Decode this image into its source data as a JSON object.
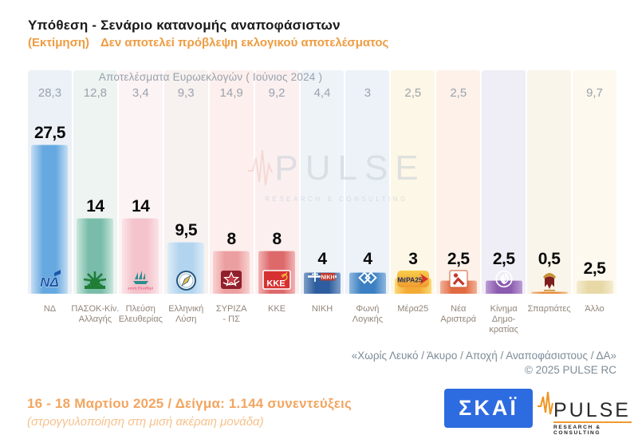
{
  "title": "Υπόθεση - Σενάριο κατανομής αναποφάσιστων",
  "subtitle_left": "(Εκτίμηση)",
  "subtitle_right": "Δεν αποτελεί πρόβλεψη εκλογικού αποτελέσματος",
  "euro_header": "Αποτελέσματα Ευρωεκλογών  ( Ιούνιος 2024 )",
  "watermark": {
    "name": "PULSE",
    "sub": "RESEARCH & CONSULTING",
    "icon": "pulse-waveform-icon"
  },
  "note_line1": "«Χωρίς Λευκό / Άκυρο / Αποχή / Αναποφάσιστους / ΔΑ»",
  "note_line2": "© 2025 PULSE RC",
  "footer": {
    "line1": "16 - 18 Μαρτίου 2025  /  Δείγμα:  1.144 συνεντεύξεις",
    "line2": "(στρογγυλοποίηση στη μισή ακέραιη μονάδα)"
  },
  "logos": {
    "skai_label": "ΣΚΑΪ",
    "pulse_label": "PULSE",
    "pulse_sub": "RESEARCH & CONSULTING"
  },
  "colors": {
    "accent_orange": "#ee9c41",
    "footer_orange": "#f2a661",
    "skai_blue": "#2d6be0",
    "note_gray": "#7d8c97",
    "euro_gray": "#9aa2ac",
    "label_gray": "#91857a"
  },
  "parties": [
    {
      "label_lines": [
        "ΝΔ"
      ],
      "euro": "28,3",
      "value_label": "27,5",
      "value": 27.5,
      "bar": "#66a9e0",
      "bar_light": "#c6def3",
      "stripe": "#ecf1f7",
      "logo": "nd-logo"
    },
    {
      "label_lines": [
        "ΠΑΣΟΚ-Κίν.",
        "Αλλαγής"
      ],
      "euro": "12,8",
      "value_label": "14",
      "value": 14,
      "bar": "#79bcaa",
      "bar_light": "#c9e6db",
      "stripe": "#eef4f1",
      "logo": "pasok-sun-logo"
    },
    {
      "label_lines": [
        "Πλεύση",
        "Ελευθερίας"
      ],
      "euro": "3,4",
      "value_label": "14",
      "value": 14,
      "bar": "#f4c3cb",
      "bar_light": "#fbe3e8",
      "stripe": "#fcf3f4",
      "logo": "plefsi-sailboat-logo"
    },
    {
      "label_lines": [
        "Ελληνική",
        "Λύση"
      ],
      "euro": "9,3",
      "value_label": "9,5",
      "value": 9.5,
      "bar": "#b3d4ee",
      "bar_light": "#ddecf8",
      "stripe": "#f7f1ef",
      "logo": "elliniki-lysi-compass-logo"
    },
    {
      "label_lines": [
        "ΣΥΡΙΖΑ",
        "- ΠΣ"
      ],
      "euro": "14,9",
      "value_label": "8",
      "value": 8,
      "bar": "#ec9fa0",
      "bar_light": "#f8d2d2",
      "stripe": "#fdefed",
      "logo": "syriza-star-logo"
    },
    {
      "label_lines": [
        "ΚΚΕ"
      ],
      "euro": "9,2",
      "value_label": "8",
      "value": 8,
      "bar": "#dd696b",
      "bar_light": "#f2b4b4",
      "stripe": "#fbeff0",
      "logo": "kke-logo"
    },
    {
      "label_lines": [
        "ΝΙΚΗ"
      ],
      "euro": "4,4",
      "value_label": "4",
      "value": 4,
      "bar": "#2d5d9e",
      "bar_light": "#7f9fc8",
      "stripe": "#eef3f8",
      "logo": "niki-logo"
    },
    {
      "label_lines": [
        "Φωνή",
        "Λογικής"
      ],
      "euro": "3",
      "value_label": "4",
      "value": 4,
      "bar": "#3b80c2",
      "bar_light": "#8fb7de",
      "stripe": "#ecf2f8",
      "logo": "foni-logikis-diamond-logo"
    },
    {
      "label_lines": [
        "Μέρα25"
      ],
      "euro": "2,5",
      "value_label": "3",
      "value": 3,
      "bar": "#f3ab35",
      "bar_light": "#fbd978",
      "stripe": "#fdf7e7",
      "logo": "mera25-logo"
    },
    {
      "label_lines": [
        "Νέα",
        "Αριστερά"
      ],
      "euro": "2,5",
      "value_label": "2,5",
      "value": 2.5,
      "bar": "#e06a41",
      "bar_light": "#f2b097",
      "stripe": "#fdf1ea",
      "logo": "nea-aristera-logo"
    },
    {
      "label_lines": [
        "Κίνημα",
        "Δημο-",
        "κρατίας"
      ],
      "euro": "",
      "value_label": "2,5",
      "value": 2.5,
      "bar": "#8a5bae",
      "bar_light": "#bd9cd6",
      "stripe": "#efeef6",
      "logo": "kinima-dimokratias-leaf-logo"
    },
    {
      "label_lines": [
        "Σπαρτιάτες"
      ],
      "euro": "",
      "value_label": "0,5",
      "value": 0.5,
      "bar": "#e78b3a",
      "bar_light": "#f3c28f",
      "stripe": "#faf5ea",
      "logo": "spartiates-helmet-logo"
    },
    {
      "label_lines": [
        "Άλλο"
      ],
      "euro": "9,7",
      "value_label": "2,5",
      "value": 2.5,
      "bar": "#e7d8a5",
      "bar_light": "#f4ecd0",
      "stripe": "#fdf9ee",
      "logo": null
    }
  ],
  "chart_data": {
    "type": "bar",
    "title": "Υπόθεση - Σενάριο κατανομής αναποφάσιστων",
    "subtitle": "(Εκτίμηση)  Δεν αποτελεί πρόβλεψη εκλογικού αποτελέσματος",
    "categories": [
      "ΝΔ",
      "ΠΑΣΟΚ-Κίν. Αλλαγής",
      "Πλεύση Ελευθερίας",
      "Ελληνική Λύση",
      "ΣΥΡΙΖΑ - ΠΣ",
      "ΚΚΕ",
      "ΝΙΚΗ",
      "Φωνή Λογικής",
      "Μέρα25",
      "Νέα Αριστερά",
      "Κίνημα Δημοκρατίας",
      "Σπαρτιάτες",
      "Άλλο"
    ],
    "series": [
      {
        "name": "Υπόθεση - Σενάριο κατανομής αναποφάσιστων",
        "values": [
          27.5,
          14,
          14,
          9.5,
          8,
          8,
          4,
          4,
          3,
          2.5,
          2.5,
          0.5,
          2.5
        ]
      },
      {
        "name": "Αποτελέσματα Ευρωεκλογών (Ιούνιος 2024)",
        "values": [
          28.3,
          12.8,
          3.4,
          9.3,
          14.9,
          9.2,
          4.4,
          3,
          2.5,
          2.5,
          null,
          null,
          9.7
        ]
      }
    ],
    "ylim": [
      0,
      30
    ],
    "grid": false,
    "legend_position": "none",
    "value_labels": true
  }
}
